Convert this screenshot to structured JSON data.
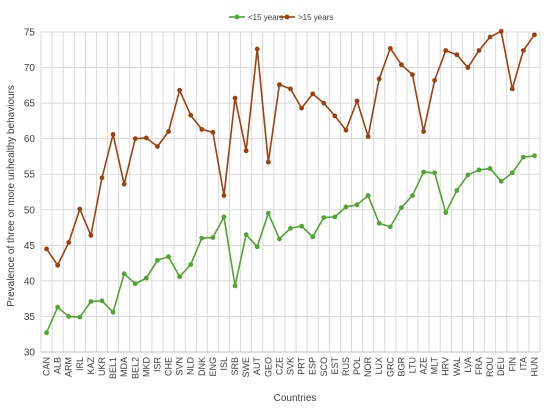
{
  "chart_data": {
    "type": "line",
    "xlabel": "Countries",
    "ylabel": "Prevalence of three or more unhealthy behaviours",
    "ylim": [
      30,
      75
    ],
    "yticks": [
      30,
      35,
      40,
      45,
      50,
      55,
      60,
      65,
      70,
      75
    ],
    "grid": true,
    "legend_position": "top",
    "categories": [
      "CAN",
      "ALB",
      "ARM",
      "IRL",
      "KAZ",
      "UKR",
      "BEL1",
      "MDA",
      "BEL2",
      "MKD",
      "ISR",
      "CHE",
      "SVN",
      "NLD",
      "DNK",
      "ENG",
      "ISL",
      "SRB",
      "SWE",
      "AUT",
      "GEO",
      "CZE",
      "SVK",
      "PRT",
      "ESP",
      "SCO",
      "EST",
      "RUS",
      "POL",
      "NOR",
      "LUX",
      "GRC",
      "BGR",
      "LTU",
      "AZE",
      "MLT",
      "HRV",
      "WAL",
      "LVA",
      "FRA",
      "ROU",
      "DEU",
      "FIN",
      "ITA",
      "HUN"
    ],
    "series": [
      {
        "name": "<15 years",
        "color": "#4ea72e",
        "values": [
          32.7,
          36.3,
          35.0,
          34.9,
          37.1,
          37.2,
          35.6,
          41.0,
          39.6,
          40.4,
          42.9,
          43.4,
          40.6,
          42.3,
          46.0,
          46.1,
          49.0,
          39.3,
          46.5,
          44.8,
          49.5,
          45.9,
          47.4,
          47.7,
          46.2,
          48.9,
          49.0,
          50.4,
          50.7,
          52.0,
          48.1,
          47.6,
          50.3,
          52.0,
          55.3,
          55.2,
          49.6,
          52.7,
          54.9,
          55.6,
          55.8,
          54.0,
          55.2,
          57.4,
          57.6
        ]
      },
      {
        "name": ">15 years",
        "color": "#a0410d",
        "values": [
          44.5,
          42.2,
          45.4,
          50.1,
          46.4,
          54.5,
          60.6,
          53.6,
          60.0,
          60.1,
          58.9,
          61.0,
          66.8,
          63.3,
          61.3,
          60.9,
          52.0,
          65.7,
          58.3,
          72.6,
          56.7,
          67.6,
          67.0,
          64.3,
          66.3,
          65.0,
          63.2,
          61.2,
          65.3,
          60.3,
          68.4,
          72.7,
          70.4,
          69.0,
          61.0,
          68.2,
          72.4,
          71.8,
          70.0,
          72.4,
          74.3,
          75.1,
          67.0,
          72.4,
          74.6
        ]
      }
    ]
  }
}
